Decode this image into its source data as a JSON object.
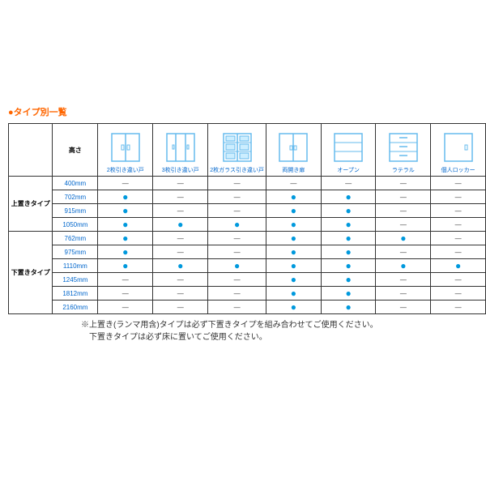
{
  "title": "●タイプ別一覧",
  "headers": {
    "height": "高さ",
    "columns": [
      {
        "label": "2枚引き違い戸",
        "icon": "sliding2"
      },
      {
        "label": "3枚引き違い戸",
        "icon": "sliding3"
      },
      {
        "label": "2枚ガラス引き違い戸",
        "icon": "glass2"
      },
      {
        "label": "両開き扉",
        "icon": "hinged"
      },
      {
        "label": "オープン",
        "icon": "open"
      },
      {
        "label": "ラテラル",
        "icon": "lateral"
      },
      {
        "label": "個人ロッカー",
        "icon": "locker"
      }
    ]
  },
  "groups": [
    {
      "name": "上置きタイプ",
      "rows": [
        {
          "height": "400mm",
          "cells": [
            "—",
            "—",
            "—",
            "—",
            "—",
            "—",
            "—"
          ]
        },
        {
          "height": "702mm",
          "cells": [
            "●",
            "—",
            "—",
            "●",
            "●",
            "—",
            "—"
          ]
        },
        {
          "height": "915mm",
          "cells": [
            "●",
            "—",
            "—",
            "●",
            "●",
            "—",
            "—"
          ]
        },
        {
          "height": "1050mm",
          "cells": [
            "●",
            "●",
            "●",
            "●",
            "●",
            "—",
            "—"
          ]
        }
      ]
    },
    {
      "name": "下置きタイプ",
      "rows": [
        {
          "height": "762mm",
          "cells": [
            "●",
            "—",
            "—",
            "●",
            "●",
            "●",
            "—"
          ]
        },
        {
          "height": "975mm",
          "cells": [
            "●",
            "—",
            "—",
            "●",
            "●",
            "—",
            "—"
          ]
        },
        {
          "height": "1110mm",
          "cells": [
            "●",
            "●",
            "●",
            "●",
            "●",
            "●",
            "●"
          ]
        },
        {
          "height": "1245mm",
          "cells": [
            "—",
            "—",
            "—",
            "●",
            "●",
            "—",
            "—"
          ]
        },
        {
          "height": "1812mm",
          "cells": [
            "—",
            "—",
            "—",
            "●",
            "●",
            "—",
            "—"
          ]
        },
        {
          "height": "2160mm",
          "cells": [
            "—",
            "—",
            "—",
            "●",
            "●",
            "—",
            "—"
          ]
        }
      ]
    }
  ],
  "notes": [
    "※上置き(ランマ用含)タイプは必ず下置きタイプを組み合わせてご使用ください。",
    "　下置きタイプは必ず床に置いてご使用ください。"
  ],
  "style": {
    "title_color": "#ff6600",
    "link_color": "#0066cc",
    "dot_color": "#0099dd",
    "border_color": "#333333",
    "icon_stroke": "#66bbee",
    "background": "#ffffff"
  }
}
